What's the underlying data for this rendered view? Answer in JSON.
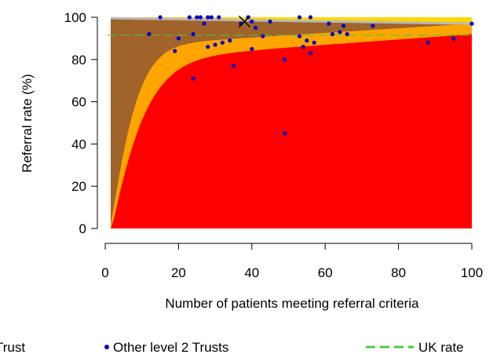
{
  "chart_data": {
    "type": "scatter",
    "xlabel": "Number of patients meeting referral criteria",
    "ylabel": "Referral rate (%)",
    "xlim": [
      0,
      102
    ],
    "ylim": [
      -4,
      102
    ],
    "xticks": [
      0,
      20,
      40,
      60,
      80,
      100
    ],
    "yticks": [
      0,
      20,
      40,
      60,
      80,
      100
    ],
    "grid": false,
    "legend_position": "bottom",
    "uk_rate": 91.5,
    "funnel": {
      "outer_band_color": "#a0642a",
      "middle_band_color": "#ffa500",
      "inner_region_color": "#ff0000",
      "top_band_color": "#ffd700",
      "center_line_color": "#b8b8b8"
    },
    "highlight_point": {
      "x": 38,
      "y": 98,
      "color": "#000000",
      "marker": "x"
    },
    "series": [
      {
        "name": "Other level 2 Trusts",
        "color": "#0000cc",
        "marker": "dot",
        "points": [
          [
            12,
            92
          ],
          [
            15,
            100
          ],
          [
            19,
            84
          ],
          [
            20,
            90
          ],
          [
            23,
            100
          ],
          [
            24,
            92
          ],
          [
            24,
            71
          ],
          [
            25,
            100
          ],
          [
            26,
            100
          ],
          [
            27,
            97
          ],
          [
            28,
            100
          ],
          [
            28,
            86
          ],
          [
            29,
            100
          ],
          [
            30,
            87
          ],
          [
            31,
            100
          ],
          [
            32,
            88
          ],
          [
            34,
            89
          ],
          [
            35,
            77
          ],
          [
            37,
            97
          ],
          [
            39,
            100
          ],
          [
            40,
            98
          ],
          [
            40,
            85
          ],
          [
            41,
            95
          ],
          [
            43,
            91
          ],
          [
            45,
            98
          ],
          [
            49,
            80
          ],
          [
            49,
            45
          ],
          [
            53,
            100
          ],
          [
            53,
            91
          ],
          [
            54,
            86
          ],
          [
            55,
            89
          ],
          [
            56,
            100
          ],
          [
            56,
            83
          ],
          [
            57,
            88
          ],
          [
            61,
            97
          ],
          [
            62,
            92
          ],
          [
            64,
            93
          ],
          [
            65,
            96
          ],
          [
            66,
            92
          ],
          [
            73,
            96
          ],
          [
            88,
            88
          ],
          [
            95,
            90
          ],
          [
            100,
            97
          ]
        ]
      },
      {
        "name": "UK rate",
        "color": "#44cc44",
        "line": "dashed"
      }
    ],
    "legend": [
      {
        "label": "Trust",
        "symbol": "x-mark"
      },
      {
        "label": "Other level 2 Trusts",
        "symbol": "dot"
      },
      {
        "label": "UK rate",
        "symbol": "dashed-line"
      }
    ]
  }
}
